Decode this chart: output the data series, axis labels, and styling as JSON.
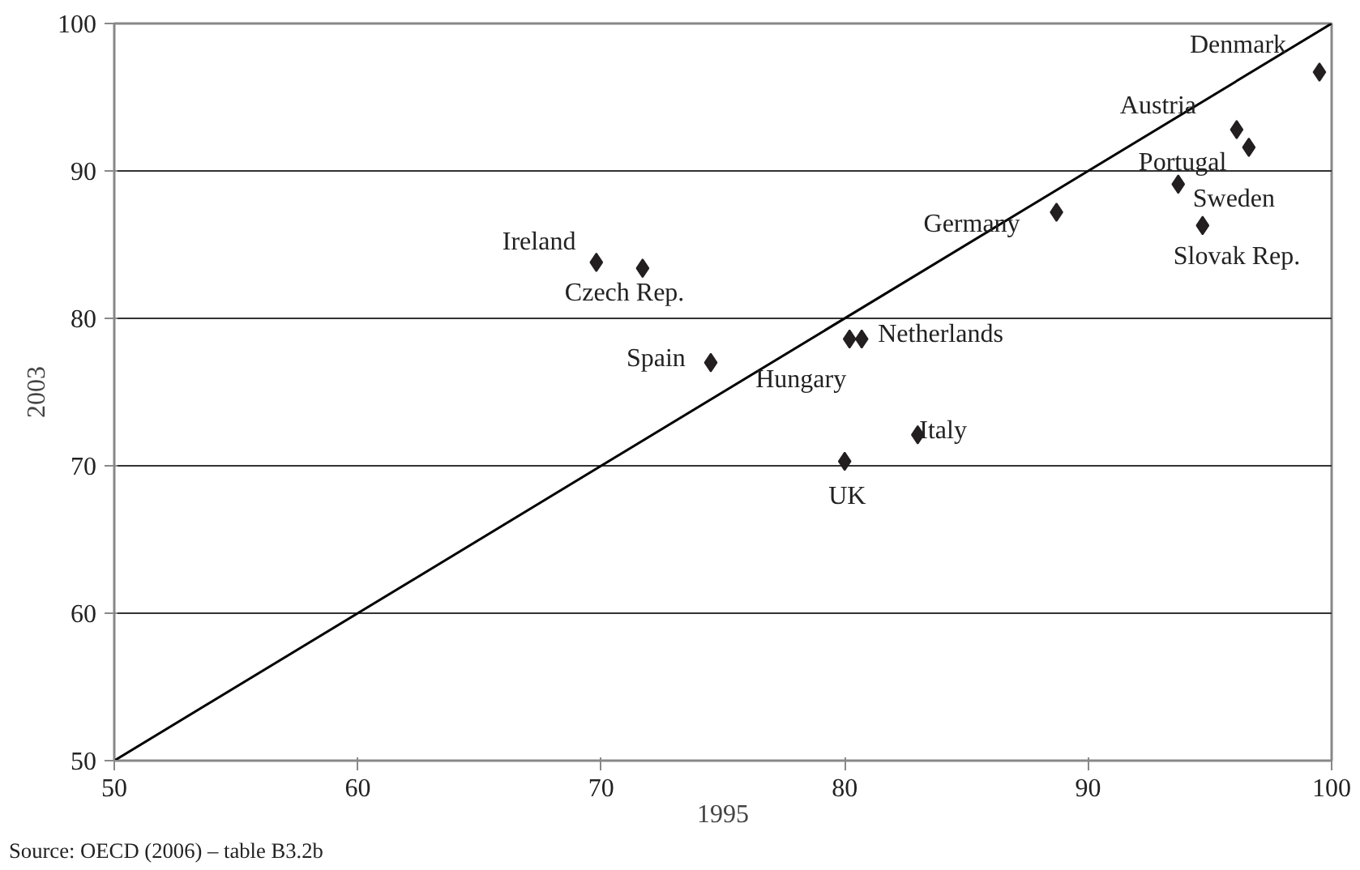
{
  "chart_data": {
    "type": "scatter",
    "xlabel": "1995",
    "ylabel": "2003",
    "xlim": [
      50,
      100
    ],
    "ylim": [
      50,
      100
    ],
    "xticks": [
      50,
      60,
      70,
      80,
      90,
      100
    ],
    "yticks": [
      50,
      60,
      70,
      80,
      90,
      100
    ],
    "grid": "y",
    "marker": "diamond",
    "series": [
      {
        "color": "#231f20",
        "x": [
          99.5,
          96.1,
          96.6,
          93.7,
          88.7,
          94.7,
          69.8,
          71.7,
          80.2,
          80.7,
          74.5,
          83.0,
          80.0
        ],
        "values": [
          96.7,
          92.8,
          91.6,
          89.1,
          87.2,
          86.3,
          83.8,
          83.4,
          78.6,
          78.6,
          77.0,
          72.1,
          70.3
        ]
      },
      {
        "type": "line",
        "marker": "none",
        "color": "#000000",
        "x": [
          50,
          100
        ],
        "values": [
          50,
          100
        ]
      }
    ],
    "annotations": [
      {
        "text": "Denmark",
        "x": 99.5,
        "y": 96.7
      },
      {
        "text": "Austria",
        "x": 96.1,
        "y": 92.8
      },
      {
        "text": "Portugal",
        "x": 96.6,
        "y": 91.6
      },
      {
        "text": "Sweden",
        "x": 93.7,
        "y": 89.1
      },
      {
        "text": "Germany",
        "x": 88.7,
        "y": 87.2
      },
      {
        "text": "Slovak Rep.",
        "x": 94.7,
        "y": 86.3
      },
      {
        "text": "Ireland",
        "x": 69.8,
        "y": 83.8
      },
      {
        "text": "Czech Rep.",
        "x": 71.7,
        "y": 83.4
      },
      {
        "text": "Hungary",
        "x": 80.2,
        "y": 78.6
      },
      {
        "text": "Netherlands",
        "x": 80.7,
        "y": 78.6
      },
      {
        "text": "Spain",
        "x": 74.5,
        "y": 77.0
      },
      {
        "text": "Italy",
        "x": 83.0,
        "y": 72.1
      },
      {
        "text": "UK",
        "x": 80.0,
        "y": 70.3
      },
      "Source: OECD (2006) – table B3.2b"
    ]
  }
}
